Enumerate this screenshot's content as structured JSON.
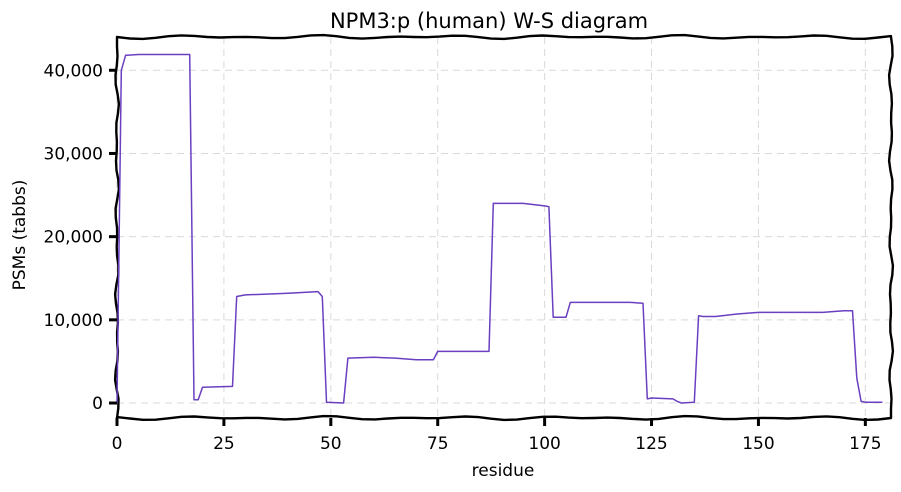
{
  "chart_data": {
    "type": "line",
    "title": "NPM3:p (human) W-S diagram",
    "xlabel": "residue",
    "ylabel": "PSMs (tabbs)",
    "xlim": [
      0,
      181
    ],
    "ylim": [
      -1800,
      44000
    ],
    "xticks": [
      0,
      25,
      50,
      75,
      100,
      125,
      150,
      175
    ],
    "yticks": [
      0,
      10000,
      20000,
      30000,
      40000
    ],
    "ytick_labels": [
      "0",
      "10,000",
      "20,000",
      "30,000",
      "40,000"
    ],
    "grid": true,
    "series_color": "#6a3fc0",
    "series": [
      {
        "x": [
          0,
          1,
          2,
          5,
          10,
          17,
          18,
          19,
          20,
          27,
          28,
          30,
          35,
          40,
          47,
          48,
          49,
          53,
          54,
          60,
          65,
          70,
          74,
          75,
          80,
          87,
          88,
          95,
          100,
          101,
          102,
          105,
          106,
          110,
          120,
          123,
          124,
          125,
          130,
          131,
          132,
          135,
          136,
          137,
          140,
          145,
          150,
          155,
          160,
          165,
          170,
          172,
          173,
          174,
          175,
          179
        ],
        "y": [
          0,
          40000,
          41800,
          41900,
          41900,
          41900,
          400,
          400,
          1900,
          2000,
          12800,
          13000,
          13100,
          13200,
          13400,
          12800,
          100,
          0,
          5400,
          5500,
          5400,
          5200,
          5200,
          6200,
          6200,
          6200,
          24000,
          24000,
          23700,
          23600,
          10300,
          10300,
          12100,
          12100,
          12100,
          12000,
          500,
          600,
          500,
          200,
          0,
          100,
          10500,
          10400,
          10400,
          10700,
          10900,
          10900,
          10900,
          10900,
          11100,
          11100,
          3000,
          200,
          100,
          100
        ]
      }
    ]
  }
}
